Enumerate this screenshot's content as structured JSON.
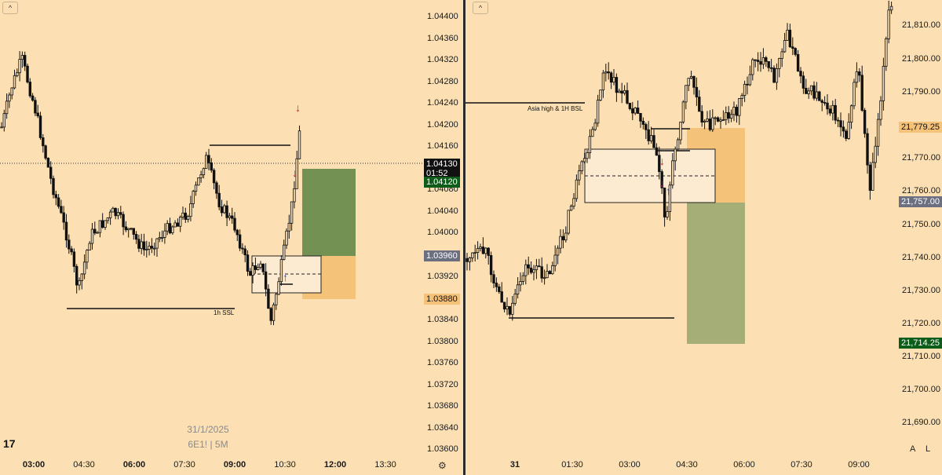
{
  "left": {
    "collapse_icon": "^",
    "price_ticks": [
      "1.04400",
      "1.04360",
      "1.04320",
      "1.04280",
      "1.04240",
      "1.04200",
      "1.04160",
      "1.04080",
      "1.04040",
      "1.04000",
      "1.03920",
      "1.03840",
      "1.03800",
      "1.03760",
      "1.03720",
      "1.03680",
      "1.03640",
      "1.03600"
    ],
    "current_price": "1.04130",
    "countdown": "01:52",
    "tag_green": "1.04120",
    "tag_grey": "1.03960",
    "tag_orange": "1.03880",
    "time_ticks": [
      {
        "label": "03:00",
        "bold": true
      },
      {
        "label": "04:30",
        "bold": false
      },
      {
        "label": "06:00",
        "bold": true
      },
      {
        "label": "07:30",
        "bold": false
      },
      {
        "label": "09:00",
        "bold": true
      },
      {
        "label": "10:30",
        "bold": false
      },
      {
        "label": "12:00",
        "bold": true
      },
      {
        "label": "13:30",
        "bold": false
      }
    ],
    "watermark_date": "31/1/2025",
    "watermark_symbol": "6E1! | 5M",
    "annotation_ssl": "1h SSL",
    "settings_icon": "⚙",
    "logo": "17"
  },
  "right": {
    "collapse_icon": "^",
    "price_ticks": [
      "21,810.00",
      "21,800.00",
      "21,790.00",
      "21,770.00",
      "21,760.00",
      "21,750.00",
      "21,740.00",
      "21,730.00",
      "21,720.00",
      "21,710.00",
      "21,700.00",
      "21,690.00"
    ],
    "tag_orange": "21,779.25",
    "tag_grey": "21,757.00",
    "tag_green": "21,714.25",
    "time_ticks": [
      {
        "label": "31",
        "bold": true
      },
      {
        "label": "01:30",
        "bold": false
      },
      {
        "label": "03:00",
        "bold": false
      },
      {
        "label": "04:30",
        "bold": false
      },
      {
        "label": "06:00",
        "bold": false
      },
      {
        "label": "07:30",
        "bold": false
      },
      {
        "label": "09:00",
        "bold": false
      }
    ],
    "annotation_bsl": "Asia high & 1H BSL",
    "btn_a": "A",
    "btn_l": "L"
  },
  "colors": {
    "background": "#fce0b3",
    "candle": "#111111",
    "profit_zone": "#6b8c4e",
    "risk_zone": "#f5c27a",
    "arrow_down": "#d4143c",
    "arrow_up": "#1a4fd8",
    "tag_green_bg": "#0d5c1a",
    "tag_grey_bg": "#6b6f80",
    "tag_orange_bg": "#f5c27a"
  }
}
